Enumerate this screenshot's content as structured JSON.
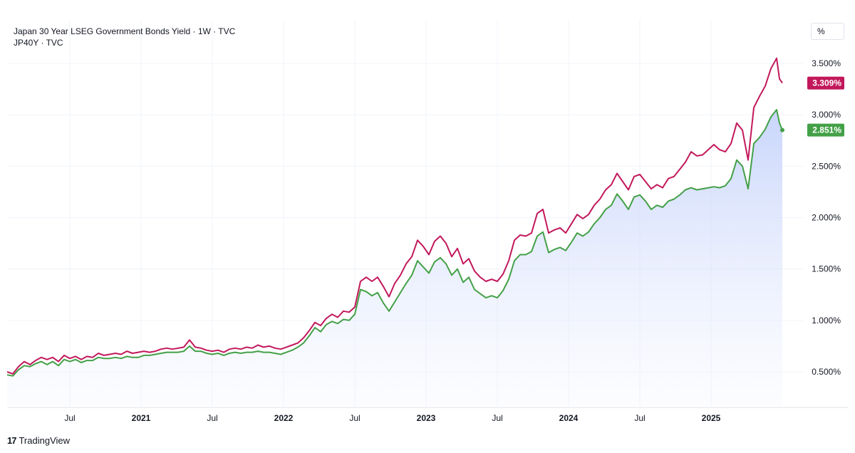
{
  "legend": {
    "line1": "Japan 30 Year LSEG Government Bonds Yield · 1W · TVC",
    "line2": "JP40Y · TVC"
  },
  "unit_button": "%",
  "brand": {
    "logo": "17",
    "name": "TradingView"
  },
  "chart_data": {
    "type": "line",
    "xlabel": "",
    "ylabel": "",
    "ylim": [
      0.2,
      3.85
    ],
    "grid": true,
    "y_ticks": [
      "3.500%",
      "3.000%",
      "2.500%",
      "2.000%",
      "1.500%",
      "1.000%",
      "0.500%"
    ],
    "y_tick_values": [
      3.5,
      3.0,
      2.5,
      2.0,
      1.5,
      1.0,
      0.5
    ],
    "x_ticks": [
      {
        "label": "Jul",
        "t": 2020.5,
        "bold": false
      },
      {
        "label": "2021",
        "t": 2021.0,
        "bold": true
      },
      {
        "label": "Jul",
        "t": 2021.5,
        "bold": false
      },
      {
        "label": "2022",
        "t": 2022.0,
        "bold": true
      },
      {
        "label": "Jul",
        "t": 2022.5,
        "bold": false
      },
      {
        "label": "2023",
        "t": 2023.0,
        "bold": true
      },
      {
        "label": "Jul",
        "t": 2023.5,
        "bold": false
      },
      {
        "label": "2024",
        "t": 2024.0,
        "bold": true
      },
      {
        "label": "Jul",
        "t": 2024.5,
        "bold": false
      },
      {
        "label": "2025",
        "t": 2025.0,
        "bold": true
      }
    ],
    "xlim": [
      2020.06,
      2025.65
    ],
    "series": [
      {
        "id": "jp30",
        "color": "#c2185b",
        "last_label": "3.309%",
        "points": [
          [
            2020.06,
            0.5
          ],
          [
            2020.1,
            0.48
          ],
          [
            2020.14,
            0.55
          ],
          [
            2020.18,
            0.6
          ],
          [
            2020.22,
            0.57
          ],
          [
            2020.26,
            0.61
          ],
          [
            2020.3,
            0.64
          ],
          [
            2020.34,
            0.62
          ],
          [
            2020.38,
            0.64
          ],
          [
            2020.42,
            0.6
          ],
          [
            2020.46,
            0.66
          ],
          [
            2020.5,
            0.63
          ],
          [
            2020.54,
            0.65
          ],
          [
            2020.58,
            0.62
          ],
          [
            2020.62,
            0.65
          ],
          [
            2020.66,
            0.64
          ],
          [
            2020.7,
            0.68
          ],
          [
            2020.74,
            0.66
          ],
          [
            2020.78,
            0.67
          ],
          [
            2020.82,
            0.68
          ],
          [
            2020.86,
            0.67
          ],
          [
            2020.9,
            0.7
          ],
          [
            2020.94,
            0.68
          ],
          [
            2020.98,
            0.69
          ],
          [
            2021.02,
            0.7
          ],
          [
            2021.06,
            0.69
          ],
          [
            2021.1,
            0.7
          ],
          [
            2021.14,
            0.72
          ],
          [
            2021.18,
            0.73
          ],
          [
            2021.22,
            0.72
          ],
          [
            2021.26,
            0.73
          ],
          [
            2021.3,
            0.74
          ],
          [
            2021.34,
            0.81
          ],
          [
            2021.38,
            0.74
          ],
          [
            2021.42,
            0.73
          ],
          [
            2021.46,
            0.71
          ],
          [
            2021.5,
            0.7
          ],
          [
            2021.54,
            0.71
          ],
          [
            2021.58,
            0.69
          ],
          [
            2021.62,
            0.72
          ],
          [
            2021.66,
            0.73
          ],
          [
            2021.7,
            0.72
          ],
          [
            2021.74,
            0.74
          ],
          [
            2021.78,
            0.73
          ],
          [
            2021.82,
            0.76
          ],
          [
            2021.86,
            0.74
          ],
          [
            2021.9,
            0.75
          ],
          [
            2021.94,
            0.73
          ],
          [
            2021.98,
            0.72
          ],
          [
            2022.02,
            0.74
          ],
          [
            2022.06,
            0.76
          ],
          [
            2022.1,
            0.78
          ],
          [
            2022.14,
            0.83
          ],
          [
            2022.18,
            0.9
          ],
          [
            2022.22,
            0.98
          ],
          [
            2022.26,
            0.95
          ],
          [
            2022.3,
            1.02
          ],
          [
            2022.34,
            1.06
          ],
          [
            2022.38,
            1.03
          ],
          [
            2022.42,
            1.09
          ],
          [
            2022.46,
            1.08
          ],
          [
            2022.5,
            1.13
          ],
          [
            2022.54,
            1.38
          ],
          [
            2022.58,
            1.42
          ],
          [
            2022.62,
            1.38
          ],
          [
            2022.66,
            1.42
          ],
          [
            2022.7,
            1.33
          ],
          [
            2022.74,
            1.23
          ],
          [
            2022.78,
            1.36
          ],
          [
            2022.82,
            1.44
          ],
          [
            2022.86,
            1.55
          ],
          [
            2022.9,
            1.62
          ],
          [
            2022.94,
            1.78
          ],
          [
            2022.98,
            1.72
          ],
          [
            2023.02,
            1.64
          ],
          [
            2023.06,
            1.77
          ],
          [
            2023.1,
            1.82
          ],
          [
            2023.14,
            1.75
          ],
          [
            2023.18,
            1.62
          ],
          [
            2023.22,
            1.7
          ],
          [
            2023.26,
            1.55
          ],
          [
            2023.3,
            1.6
          ],
          [
            2023.34,
            1.48
          ],
          [
            2023.38,
            1.42
          ],
          [
            2023.42,
            1.38
          ],
          [
            2023.46,
            1.4
          ],
          [
            2023.5,
            1.38
          ],
          [
            2023.54,
            1.45
          ],
          [
            2023.58,
            1.58
          ],
          [
            2023.62,
            1.78
          ],
          [
            2023.66,
            1.83
          ],
          [
            2023.7,
            1.82
          ],
          [
            2023.74,
            1.85
          ],
          [
            2023.78,
            2.04
          ],
          [
            2023.82,
            2.08
          ],
          [
            2023.86,
            1.85
          ],
          [
            2023.9,
            1.88
          ],
          [
            2023.94,
            1.9
          ],
          [
            2023.98,
            1.85
          ],
          [
            2024.02,
            1.94
          ],
          [
            2024.06,
            2.03
          ],
          [
            2024.1,
            1.99
          ],
          [
            2024.14,
            2.03
          ],
          [
            2024.18,
            2.12
          ],
          [
            2024.22,
            2.18
          ],
          [
            2024.26,
            2.27
          ],
          [
            2024.3,
            2.32
          ],
          [
            2024.34,
            2.43
          ],
          [
            2024.38,
            2.35
          ],
          [
            2024.42,
            2.27
          ],
          [
            2024.46,
            2.4
          ],
          [
            2024.5,
            2.42
          ],
          [
            2024.54,
            2.35
          ],
          [
            2024.58,
            2.28
          ],
          [
            2024.62,
            2.32
          ],
          [
            2024.66,
            2.29
          ],
          [
            2024.7,
            2.38
          ],
          [
            2024.74,
            2.4
          ],
          [
            2024.78,
            2.47
          ],
          [
            2024.82,
            2.54
          ],
          [
            2024.86,
            2.64
          ],
          [
            2024.9,
            2.6
          ],
          [
            2024.94,
            2.61
          ],
          [
            2024.98,
            2.66
          ],
          [
            2025.02,
            2.71
          ],
          [
            2025.06,
            2.66
          ],
          [
            2025.1,
            2.64
          ],
          [
            2025.14,
            2.72
          ],
          [
            2025.18,
            2.92
          ],
          [
            2025.22,
            2.85
          ],
          [
            2025.26,
            2.56
          ],
          [
            2025.3,
            3.07
          ],
          [
            2025.34,
            3.18
          ],
          [
            2025.38,
            3.28
          ],
          [
            2025.42,
            3.45
          ],
          [
            2025.46,
            3.55
          ],
          [
            2025.48,
            3.35
          ],
          [
            2025.5,
            3.309
          ]
        ]
      },
      {
        "id": "jp40",
        "color": "#43a047",
        "last_label": "2.851%",
        "points": [
          [
            2020.06,
            0.47
          ],
          [
            2020.1,
            0.46
          ],
          [
            2020.14,
            0.52
          ],
          [
            2020.18,
            0.56
          ],
          [
            2020.22,
            0.55
          ],
          [
            2020.26,
            0.58
          ],
          [
            2020.3,
            0.6
          ],
          [
            2020.34,
            0.57
          ],
          [
            2020.38,
            0.6
          ],
          [
            2020.42,
            0.56
          ],
          [
            2020.46,
            0.62
          ],
          [
            2020.5,
            0.6
          ],
          [
            2020.54,
            0.62
          ],
          [
            2020.58,
            0.59
          ],
          [
            2020.62,
            0.61
          ],
          [
            2020.66,
            0.61
          ],
          [
            2020.7,
            0.64
          ],
          [
            2020.74,
            0.63
          ],
          [
            2020.78,
            0.63
          ],
          [
            2020.82,
            0.64
          ],
          [
            2020.86,
            0.63
          ],
          [
            2020.9,
            0.65
          ],
          [
            2020.94,
            0.64
          ],
          [
            2020.98,
            0.64
          ],
          [
            2021.02,
            0.66
          ],
          [
            2021.06,
            0.66
          ],
          [
            2021.1,
            0.67
          ],
          [
            2021.14,
            0.68
          ],
          [
            2021.18,
            0.69
          ],
          [
            2021.22,
            0.69
          ],
          [
            2021.26,
            0.69
          ],
          [
            2021.3,
            0.7
          ],
          [
            2021.34,
            0.75
          ],
          [
            2021.38,
            0.7
          ],
          [
            2021.42,
            0.7
          ],
          [
            2021.46,
            0.68
          ],
          [
            2021.5,
            0.67
          ],
          [
            2021.54,
            0.68
          ],
          [
            2021.58,
            0.66
          ],
          [
            2021.62,
            0.68
          ],
          [
            2021.66,
            0.69
          ],
          [
            2021.7,
            0.68
          ],
          [
            2021.74,
            0.69
          ],
          [
            2021.78,
            0.69
          ],
          [
            2021.82,
            0.7
          ],
          [
            2021.86,
            0.69
          ],
          [
            2021.9,
            0.69
          ],
          [
            2021.94,
            0.68
          ],
          [
            2021.98,
            0.67
          ],
          [
            2022.02,
            0.69
          ],
          [
            2022.06,
            0.71
          ],
          [
            2022.1,
            0.74
          ],
          [
            2022.14,
            0.78
          ],
          [
            2022.18,
            0.85
          ],
          [
            2022.22,
            0.93
          ],
          [
            2022.26,
            0.89
          ],
          [
            2022.3,
            0.96
          ],
          [
            2022.34,
            0.99
          ],
          [
            2022.38,
            0.97
          ],
          [
            2022.42,
            1.01
          ],
          [
            2022.46,
            1.0
          ],
          [
            2022.5,
            1.06
          ],
          [
            2022.54,
            1.3
          ],
          [
            2022.58,
            1.28
          ],
          [
            2022.62,
            1.24
          ],
          [
            2022.66,
            1.27
          ],
          [
            2022.7,
            1.17
          ],
          [
            2022.74,
            1.09
          ],
          [
            2022.78,
            1.18
          ],
          [
            2022.82,
            1.27
          ],
          [
            2022.86,
            1.36
          ],
          [
            2022.9,
            1.44
          ],
          [
            2022.94,
            1.58
          ],
          [
            2022.98,
            1.52
          ],
          [
            2023.02,
            1.46
          ],
          [
            2023.06,
            1.57
          ],
          [
            2023.1,
            1.61
          ],
          [
            2023.14,
            1.55
          ],
          [
            2023.18,
            1.44
          ],
          [
            2023.22,
            1.5
          ],
          [
            2023.26,
            1.37
          ],
          [
            2023.3,
            1.42
          ],
          [
            2023.34,
            1.3
          ],
          [
            2023.38,
            1.26
          ],
          [
            2023.42,
            1.22
          ],
          [
            2023.46,
            1.24
          ],
          [
            2023.5,
            1.22
          ],
          [
            2023.54,
            1.29
          ],
          [
            2023.58,
            1.4
          ],
          [
            2023.62,
            1.58
          ],
          [
            2023.66,
            1.64
          ],
          [
            2023.7,
            1.64
          ],
          [
            2023.74,
            1.67
          ],
          [
            2023.78,
            1.82
          ],
          [
            2023.82,
            1.86
          ],
          [
            2023.86,
            1.66
          ],
          [
            2023.9,
            1.69
          ],
          [
            2023.94,
            1.71
          ],
          [
            2023.98,
            1.68
          ],
          [
            2024.02,
            1.76
          ],
          [
            2024.06,
            1.85
          ],
          [
            2024.1,
            1.82
          ],
          [
            2024.14,
            1.86
          ],
          [
            2024.18,
            1.94
          ],
          [
            2024.22,
            2.0
          ],
          [
            2024.26,
            2.08
          ],
          [
            2024.3,
            2.12
          ],
          [
            2024.34,
            2.23
          ],
          [
            2024.38,
            2.16
          ],
          [
            2024.42,
            2.08
          ],
          [
            2024.46,
            2.2
          ],
          [
            2024.5,
            2.22
          ],
          [
            2024.54,
            2.16
          ],
          [
            2024.58,
            2.08
          ],
          [
            2024.62,
            2.12
          ],
          [
            2024.66,
            2.1
          ],
          [
            2024.7,
            2.16
          ],
          [
            2024.74,
            2.18
          ],
          [
            2024.78,
            2.22
          ],
          [
            2024.82,
            2.27
          ],
          [
            2024.86,
            2.29
          ],
          [
            2024.9,
            2.27
          ],
          [
            2024.94,
            2.28
          ],
          [
            2024.98,
            2.29
          ],
          [
            2025.02,
            2.3
          ],
          [
            2025.06,
            2.29
          ],
          [
            2025.1,
            2.31
          ],
          [
            2025.14,
            2.38
          ],
          [
            2025.18,
            2.56
          ],
          [
            2025.22,
            2.5
          ],
          [
            2025.26,
            2.28
          ],
          [
            2025.3,
            2.72
          ],
          [
            2025.34,
            2.78
          ],
          [
            2025.38,
            2.86
          ],
          [
            2025.42,
            2.98
          ],
          [
            2025.46,
            3.05
          ],
          [
            2025.48,
            2.92
          ],
          [
            2025.5,
            2.851
          ]
        ]
      }
    ]
  }
}
